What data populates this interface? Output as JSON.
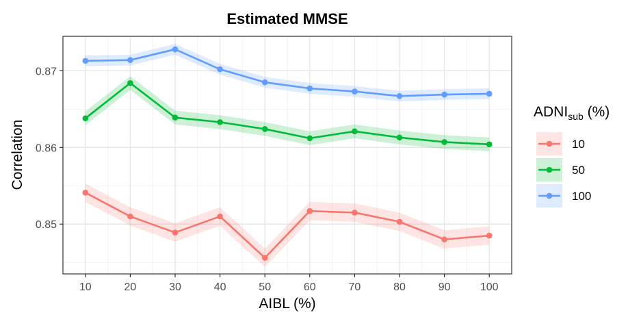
{
  "chart_data": {
    "type": "line",
    "title": "Estimated MMSE",
    "xlabel": "AIBL (%)",
    "ylabel": "Correlation",
    "x": [
      10,
      20,
      30,
      40,
      50,
      60,
      70,
      80,
      90,
      100
    ],
    "xlim": [
      5,
      105
    ],
    "ylim": [
      0.8435,
      0.8745
    ],
    "yticks": [
      "0.85",
      "0.86",
      "0.87"
    ],
    "ytick_values": [
      0.85,
      0.86,
      0.87
    ],
    "xticks": [
      "10",
      "20",
      "30",
      "40",
      "50",
      "60",
      "70",
      "80",
      "90",
      "100"
    ],
    "grid": true,
    "legend": {
      "title_main": "ADNI",
      "title_sub": "sub",
      "title_tail": " (%)",
      "placement": "right"
    },
    "series": [
      {
        "name": "10",
        "color": "#F8766D",
        "values": [
          0.8541,
          0.851,
          0.8489,
          0.851,
          0.8456,
          0.8517,
          0.8515,
          0.8503,
          0.848,
          0.8485
        ],
        "ribbon": 0.0012
      },
      {
        "name": "50",
        "color": "#00BA38",
        "values": [
          0.8638,
          0.8684,
          0.8639,
          0.8633,
          0.8624,
          0.8612,
          0.8621,
          0.8613,
          0.8607,
          0.8604
        ],
        "ribbon": 0.0009
      },
      {
        "name": "100",
        "color": "#619CFF",
        "values": [
          0.8713,
          0.8714,
          0.8728,
          0.8702,
          0.8685,
          0.8677,
          0.8673,
          0.8667,
          0.8669,
          0.867
        ],
        "ribbon": 0.0007
      }
    ]
  }
}
